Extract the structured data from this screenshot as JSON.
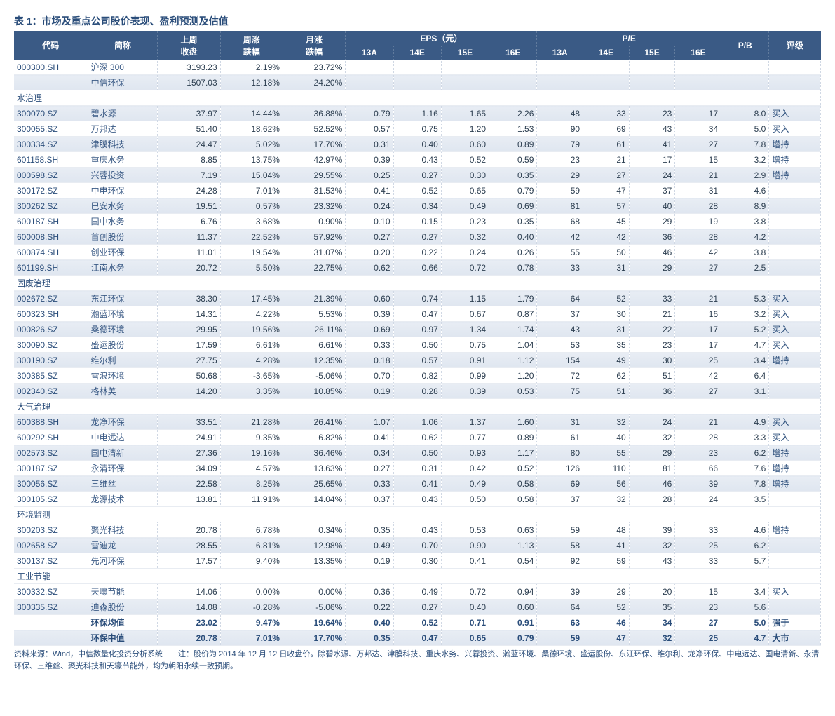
{
  "title": "表 1：市场及重点公司股价表现、盈利预测及估值",
  "headers": {
    "code": "代码",
    "name": "简称",
    "close": "上周\n收盘",
    "wk": "周涨\n跌幅",
    "mo": "月涨\n跌幅",
    "eps_group": "EPS（元）",
    "pe_group": "P/E",
    "pb": "P/B",
    "rating": "评级",
    "y13a": "13A",
    "y14e": "14E",
    "y15e": "15E",
    "y16e": "16E"
  },
  "sections": [
    {
      "type": "data",
      "shaded": false,
      "code": "000300.SH",
      "name": "沪深 300",
      "close": "3193.23",
      "wk": "2.19%",
      "mo": "23.72%",
      "eps": [
        "",
        "",
        "",
        ""
      ],
      "pe": [
        "",
        "",
        "",
        ""
      ],
      "pb": "",
      "rating": ""
    },
    {
      "type": "data",
      "shaded": true,
      "code": "",
      "name": "中信环保",
      "close": "1507.03",
      "wk": "12.18%",
      "mo": "24.20%",
      "eps": [
        "",
        "",
        "",
        ""
      ],
      "pe": [
        "",
        "",
        "",
        ""
      ],
      "pb": "",
      "rating": ""
    },
    {
      "type": "section",
      "label": "水治理"
    },
    {
      "type": "data",
      "shaded": true,
      "code": "300070.SZ",
      "name": "碧水源",
      "close": "37.97",
      "wk": "14.44%",
      "mo": "36.88%",
      "eps": [
        "0.79",
        "1.16",
        "1.65",
        "2.26"
      ],
      "pe": [
        "48",
        "33",
        "23",
        "17"
      ],
      "pb": "8.0",
      "rating": "买入"
    },
    {
      "type": "data",
      "shaded": false,
      "code": "300055.SZ",
      "name": "万邦达",
      "close": "51.40",
      "wk": "18.62%",
      "mo": "52.52%",
      "eps": [
        "0.57",
        "0.75",
        "1.20",
        "1.53"
      ],
      "pe": [
        "90",
        "69",
        "43",
        "34"
      ],
      "pb": "5.0",
      "rating": "买入"
    },
    {
      "type": "data",
      "shaded": true,
      "code": "300334.SZ",
      "name": "津膜科技",
      "close": "24.47",
      "wk": "5.02%",
      "mo": "17.70%",
      "eps": [
        "0.31",
        "0.40",
        "0.60",
        "0.89"
      ],
      "pe": [
        "79",
        "61",
        "41",
        "27"
      ],
      "pb": "7.8",
      "rating": "增持"
    },
    {
      "type": "data",
      "shaded": false,
      "code": "601158.SH",
      "name": "重庆水务",
      "close": "8.85",
      "wk": "13.75%",
      "mo": "42.97%",
      "eps": [
        "0.39",
        "0.43",
        "0.52",
        "0.59"
      ],
      "pe": [
        "23",
        "21",
        "17",
        "15"
      ],
      "pb": "3.2",
      "rating": "增持"
    },
    {
      "type": "data",
      "shaded": true,
      "code": "000598.SZ",
      "name": "兴蓉投资",
      "close": "7.19",
      "wk": "15.04%",
      "mo": "29.55%",
      "eps": [
        "0.25",
        "0.27",
        "0.30",
        "0.35"
      ],
      "pe": [
        "29",
        "27",
        "24",
        "21"
      ],
      "pb": "2.9",
      "rating": "增持"
    },
    {
      "type": "data",
      "shaded": false,
      "code": "300172.SZ",
      "name": "中电环保",
      "close": "24.28",
      "wk": "7.01%",
      "mo": "31.53%",
      "eps": [
        "0.41",
        "0.52",
        "0.65",
        "0.79"
      ],
      "pe": [
        "59",
        "47",
        "37",
        "31"
      ],
      "pb": "4.6",
      "rating": ""
    },
    {
      "type": "data",
      "shaded": true,
      "code": "300262.SZ",
      "name": "巴安水务",
      "close": "19.51",
      "wk": "0.57%",
      "mo": "23.32%",
      "eps": [
        "0.24",
        "0.34",
        "0.49",
        "0.69"
      ],
      "pe": [
        "81",
        "57",
        "40",
        "28"
      ],
      "pb": "8.9",
      "rating": ""
    },
    {
      "type": "data",
      "shaded": false,
      "code": "600187.SH",
      "name": "国中水务",
      "close": "6.76",
      "wk": "3.68%",
      "mo": "0.90%",
      "eps": [
        "0.10",
        "0.15",
        "0.23",
        "0.35"
      ],
      "pe": [
        "68",
        "45",
        "29",
        "19"
      ],
      "pb": "3.8",
      "rating": ""
    },
    {
      "type": "data",
      "shaded": true,
      "code": "600008.SH",
      "name": "首创股份",
      "close": "11.37",
      "wk": "22.52%",
      "mo": "57.92%",
      "eps": [
        "0.27",
        "0.27",
        "0.32",
        "0.40"
      ],
      "pe": [
        "42",
        "42",
        "36",
        "28"
      ],
      "pb": "4.2",
      "rating": ""
    },
    {
      "type": "data",
      "shaded": false,
      "code": "600874.SH",
      "name": "创业环保",
      "close": "11.01",
      "wk": "19.54%",
      "mo": "31.07%",
      "eps": [
        "0.20",
        "0.22",
        "0.24",
        "0.26"
      ],
      "pe": [
        "55",
        "50",
        "46",
        "42"
      ],
      "pb": "3.8",
      "rating": ""
    },
    {
      "type": "data",
      "shaded": true,
      "code": "601199.SH",
      "name": "江南水务",
      "close": "20.72",
      "wk": "5.50%",
      "mo": "22.75%",
      "eps": [
        "0.62",
        "0.66",
        "0.72",
        "0.78"
      ],
      "pe": [
        "33",
        "31",
        "29",
        "27"
      ],
      "pb": "2.5",
      "rating": ""
    },
    {
      "type": "section",
      "label": "固废治理"
    },
    {
      "type": "data",
      "shaded": true,
      "code": "002672.SZ",
      "name": "东江环保",
      "close": "38.30",
      "wk": "17.45%",
      "mo": "21.39%",
      "eps": [
        "0.60",
        "0.74",
        "1.15",
        "1.79"
      ],
      "pe": [
        "64",
        "52",
        "33",
        "21"
      ],
      "pb": "5.3",
      "rating": "买入"
    },
    {
      "type": "data",
      "shaded": false,
      "code": "600323.SH",
      "name": "瀚蓝环境",
      "close": "14.31",
      "wk": "4.22%",
      "mo": "5.53%",
      "eps": [
        "0.39",
        "0.47",
        "0.67",
        "0.87"
      ],
      "pe": [
        "37",
        "30",
        "21",
        "16"
      ],
      "pb": "3.2",
      "rating": "买入"
    },
    {
      "type": "data",
      "shaded": true,
      "code": "000826.SZ",
      "name": "桑德环境",
      "close": "29.95",
      "wk": "19.56%",
      "mo": "26.11%",
      "eps": [
        "0.69",
        "0.97",
        "1.34",
        "1.74"
      ],
      "pe": [
        "43",
        "31",
        "22",
        "17"
      ],
      "pb": "5.2",
      "rating": "买入"
    },
    {
      "type": "data",
      "shaded": false,
      "code": "300090.SZ",
      "name": "盛运股份",
      "close": "17.59",
      "wk": "6.61%",
      "mo": "6.61%",
      "eps": [
        "0.33",
        "0.50",
        "0.75",
        "1.04"
      ],
      "pe": [
        "53",
        "35",
        "23",
        "17"
      ],
      "pb": "4.7",
      "rating": "买入"
    },
    {
      "type": "data",
      "shaded": true,
      "code": "300190.SZ",
      "name": "维尔利",
      "close": "27.75",
      "wk": "4.28%",
      "mo": "12.35%",
      "eps": [
        "0.18",
        "0.57",
        "0.91",
        "1.12"
      ],
      "pe": [
        "154",
        "49",
        "30",
        "25"
      ],
      "pb": "3.4",
      "rating": "增持"
    },
    {
      "type": "data",
      "shaded": false,
      "code": "300385.SZ",
      "name": "雪浪环境",
      "close": "50.68",
      "wk": "-3.65%",
      "mo": "-5.06%",
      "eps": [
        "0.70",
        "0.82",
        "0.99",
        "1.20"
      ],
      "pe": [
        "72",
        "62",
        "51",
        "42"
      ],
      "pb": "6.4",
      "rating": ""
    },
    {
      "type": "data",
      "shaded": true,
      "code": "002340.SZ",
      "name": "格林美",
      "close": "14.20",
      "wk": "3.35%",
      "mo": "10.85%",
      "eps": [
        "0.19",
        "0.28",
        "0.39",
        "0.53"
      ],
      "pe": [
        "75",
        "51",
        "36",
        "27"
      ],
      "pb": "3.1",
      "rating": ""
    },
    {
      "type": "section",
      "label": "大气治理"
    },
    {
      "type": "data",
      "shaded": true,
      "code": "600388.SH",
      "name": "龙净环保",
      "close": "33.51",
      "wk": "21.28%",
      "mo": "26.41%",
      "eps": [
        "1.07",
        "1.06",
        "1.37",
        "1.60"
      ],
      "pe": [
        "31",
        "32",
        "24",
        "21"
      ],
      "pb": "4.9",
      "rating": "买入"
    },
    {
      "type": "data",
      "shaded": false,
      "code": "600292.SH",
      "name": "中电远达",
      "close": "24.91",
      "wk": "9.35%",
      "mo": "6.82%",
      "eps": [
        "0.41",
        "0.62",
        "0.77",
        "0.89"
      ],
      "pe": [
        "61",
        "40",
        "32",
        "28"
      ],
      "pb": "3.3",
      "rating": "买入"
    },
    {
      "type": "data",
      "shaded": true,
      "code": "002573.SZ",
      "name": "国电清新",
      "close": "27.36",
      "wk": "19.16%",
      "mo": "36.46%",
      "eps": [
        "0.34",
        "0.50",
        "0.93",
        "1.17"
      ],
      "pe": [
        "80",
        "55",
        "29",
        "23"
      ],
      "pb": "6.2",
      "rating": "增持"
    },
    {
      "type": "data",
      "shaded": false,
      "code": "300187.SZ",
      "name": "永清环保",
      "close": "34.09",
      "wk": "4.57%",
      "mo": "13.63%",
      "eps": [
        "0.27",
        "0.31",
        "0.42",
        "0.52"
      ],
      "pe": [
        "126",
        "110",
        "81",
        "66"
      ],
      "pb": "7.6",
      "rating": "增持"
    },
    {
      "type": "data",
      "shaded": true,
      "code": "300056.SZ",
      "name": "三维丝",
      "close": "22.58",
      "wk": "8.25%",
      "mo": "25.65%",
      "eps": [
        "0.33",
        "0.41",
        "0.49",
        "0.58"
      ],
      "pe": [
        "69",
        "56",
        "46",
        "39"
      ],
      "pb": "7.8",
      "rating": "增持"
    },
    {
      "type": "data",
      "shaded": false,
      "code": "300105.SZ",
      "name": "龙源技术",
      "close": "13.81",
      "wk": "11.91%",
      "mo": "14.04%",
      "eps": [
        "0.37",
        "0.43",
        "0.50",
        "0.58"
      ],
      "pe": [
        "37",
        "32",
        "28",
        "24"
      ],
      "pb": "3.5",
      "rating": ""
    },
    {
      "type": "section",
      "label": "环境监测"
    },
    {
      "type": "data",
      "shaded": false,
      "code": "300203.SZ",
      "name": "聚光科技",
      "close": "20.78",
      "wk": "6.78%",
      "mo": "0.34%",
      "eps": [
        "0.35",
        "0.43",
        "0.53",
        "0.63"
      ],
      "pe": [
        "59",
        "48",
        "39",
        "33"
      ],
      "pb": "4.6",
      "rating": "增持"
    },
    {
      "type": "data",
      "shaded": true,
      "code": "002658.SZ",
      "name": "雪迪龙",
      "close": "28.55",
      "wk": "6.81%",
      "mo": "12.98%",
      "eps": [
        "0.49",
        "0.70",
        "0.90",
        "1.13"
      ],
      "pe": [
        "58",
        "41",
        "32",
        "25"
      ],
      "pb": "6.2",
      "rating": ""
    },
    {
      "type": "data",
      "shaded": false,
      "code": "300137.SZ",
      "name": "先河环保",
      "close": "17.57",
      "wk": "9.40%",
      "mo": "13.35%",
      "eps": [
        "0.19",
        "0.30",
        "0.41",
        "0.54"
      ],
      "pe": [
        "92",
        "59",
        "43",
        "33"
      ],
      "pb": "5.7",
      "rating": ""
    },
    {
      "type": "section",
      "label": "工业节能"
    },
    {
      "type": "data",
      "shaded": false,
      "code": "300332.SZ",
      "name": "天壕节能",
      "close": "14.06",
      "wk": "0.00%",
      "mo": "0.00%",
      "eps": [
        "0.36",
        "0.49",
        "0.72",
        "0.94"
      ],
      "pe": [
        "39",
        "29",
        "20",
        "15"
      ],
      "pb": "3.4",
      "rating": "买入"
    },
    {
      "type": "data",
      "shaded": true,
      "code": "300335.SZ",
      "name": "迪森股份",
      "close": "14.08",
      "wk": "-0.28%",
      "mo": "-5.06%",
      "eps": [
        "0.22",
        "0.27",
        "0.40",
        "0.60"
      ],
      "pe": [
        "64",
        "52",
        "35",
        "23"
      ],
      "pb": "5.6",
      "rating": ""
    },
    {
      "type": "summary",
      "shaded": false,
      "name": "环保均值",
      "close": "23.02",
      "wk": "9.47%",
      "mo": "19.64%",
      "eps": [
        "0.40",
        "0.52",
        "0.71",
        "0.91"
      ],
      "pe": [
        "63",
        "46",
        "34",
        "27"
      ],
      "pb": "5.0",
      "rating": "强于"
    },
    {
      "type": "summary",
      "shaded": true,
      "name": "环保中值",
      "close": "20.78",
      "wk": "7.01%",
      "mo": "17.70%",
      "eps": [
        "0.35",
        "0.47",
        "0.65",
        "0.79"
      ],
      "pe": [
        "59",
        "47",
        "32",
        "25"
      ],
      "pb": "4.7",
      "rating": "大市"
    }
  ],
  "footnote": "资料来源：Wind，中信数量化投资分析系统　　注：股价为 2014 年 12 月 12 日收盘价。除碧水源、万邦达、津膜科技、重庆水务、兴蓉投资、瀚蓝环境、桑德环境、盛运股份、东江环保、维尔利、龙净环保、中电远达、国电清新、永清环保、三维丝、聚光科技和天壕节能外，均为朝阳永续一致预期。",
  "colors": {
    "header_bg": "#3a5a85",
    "header_fg": "#ffffff",
    "row_shade_top": "#e8edf4",
    "row_shade_bot": "#dfe6f0",
    "border": "#d0d8e4",
    "text_primary": "#2a4d7a"
  }
}
